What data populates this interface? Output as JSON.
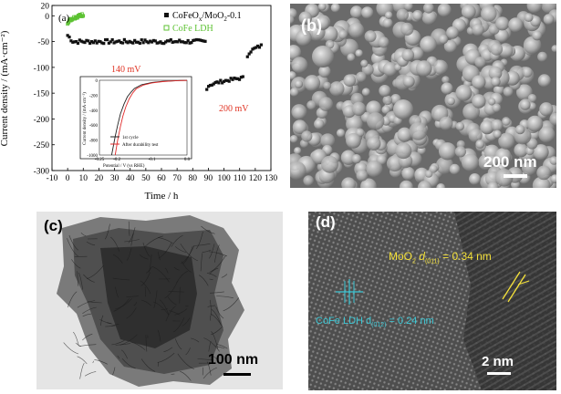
{
  "figure": {
    "panel_a": {
      "label": "(a)",
      "legend": [
        {
          "name": "CoFeO",
          "sub": "x",
          "rest": "/MoO",
          "sub2": "2",
          "tail": "-0.1",
          "color": "#111111",
          "marker": "filled-square"
        },
        {
          "name": "CoFe LDH",
          "color": "#5cc232",
          "marker": "open-square"
        }
      ],
      "annotations": {
        "a140": "140 mV",
        "a200": "200 mV",
        "color": "#e03323"
      },
      "inset": {
        "ylabel": "Current density / (mA·cm⁻²)",
        "xlabel": "Potential / V (vs RHE)",
        "legend": [
          "1st cycle",
          "After durability test"
        ],
        "colors": [
          "#222222",
          "#e02a2a"
        ]
      }
    },
    "panel_b": {
      "label": "(b)",
      "scale": "200 nm"
    },
    "panel_c": {
      "label": "(c)",
      "scale": "100 nm"
    },
    "panel_d": {
      "label": "(d)",
      "scale": "2 nm",
      "moo2": {
        "text1": "MoO",
        "sub1": "2",
        "text2": " d",
        "sub2": "(011)",
        "text3": " = 0.34 nm",
        "color": "#f4e13a"
      },
      "cofe": {
        "text1": "CoFe LDH d",
        "sub1": "(012)",
        "text3": " = 0.24 nm",
        "color": "#3cc8d6"
      }
    }
  },
  "chart_data": [
    {
      "type": "scatter",
      "title": "",
      "xlabel": "Time / h",
      "ylabel": "Current density / (mA·cm⁻²)",
      "xlim": [
        -10,
        130
      ],
      "ylim": [
        -300,
        20
      ],
      "xticks": [
        "-10",
        "0",
        "10",
        "20",
        "30",
        "40",
        "50",
        "60",
        "70",
        "80",
        "90",
        "100",
        "110",
        "120",
        "130"
      ],
      "yticks": [
        "20",
        "0",
        "-50",
        "-100",
        "-150",
        "-200",
        "-250",
        "-300"
      ],
      "series": [
        {
          "name": "CoFeOx/MoO2-0.1",
          "color": "#111111",
          "marker": "filled-square",
          "segments": [
            {
              "x_range": [
                0,
                88
              ],
              "y_mean": -50,
              "y_start": -38
            },
            {
              "x_range": [
                89,
                113
              ],
              "y_start": -140,
              "y_end": -120
            },
            {
              "x_range": [
                115,
                124
              ],
              "y_start": -78,
              "y_end": -58
            }
          ]
        },
        {
          "name": "CoFe LDH",
          "color": "#5cc232",
          "marker": "open-square",
          "segments": [
            {
              "x_range": [
                0,
                10
              ],
              "y_start": -14,
              "y_end": 2
            }
          ]
        }
      ]
    },
    {
      "type": "line",
      "title": "",
      "xlabel": "Potential / V (vs RHE)",
      "ylabel": "Current density / (mA·cm⁻²)",
      "xlim": [
        -0.25,
        0.0
      ],
      "ylim": [
        -1000,
        0
      ],
      "xticks": [
        "-0.25",
        "-0.2",
        "-0.1",
        "0.0"
      ],
      "yticks": [
        "0",
        "-200",
        "-400",
        "-600",
        "-800",
        "-1000"
      ],
      "series": [
        {
          "name": "1st cycle",
          "x": [
            -0.215,
            -0.205,
            -0.198,
            -0.19,
            -0.18,
            -0.17,
            -0.16,
            -0.15,
            -0.13,
            -0.1,
            -0.07,
            -0.04,
            -0.02,
            0.0
          ],
          "y": [
            -1000,
            -750,
            -600,
            -450,
            -320,
            -220,
            -160,
            -110,
            -60,
            -30,
            -15,
            -8,
            -4,
            -2
          ]
        },
        {
          "name": "After durability test",
          "x": [
            -0.205,
            -0.198,
            -0.19,
            -0.183,
            -0.175,
            -0.165,
            -0.155,
            -0.145,
            -0.125,
            -0.1,
            -0.07,
            -0.04,
            -0.02,
            0.0
          ],
          "y": [
            -1000,
            -800,
            -620,
            -480,
            -360,
            -250,
            -170,
            -115,
            -65,
            -35,
            -18,
            -9,
            -4,
            -2
          ]
        }
      ]
    }
  ]
}
